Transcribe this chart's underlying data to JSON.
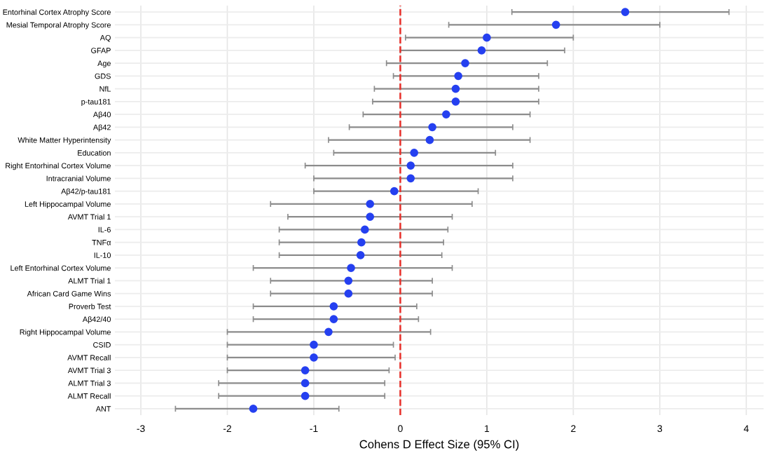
{
  "chart_data": {
    "type": "scatter",
    "orientation": "horizontal",
    "xlabel": "Cohens D Effect Size (95% CI)",
    "categories": [
      "Entorhinal Cortex Atrophy Score",
      "Mesial Temporal Atrophy Score",
      "AQ",
      "GFAP",
      "Age",
      "GDS",
      "NfL",
      "p-tau181",
      "Aβ40",
      "Aβ42",
      "White Matter Hyperintensity",
      "Education",
      "Right Entorhinal Cortex Volume",
      "Intracranial Volume",
      "Aβ42/p-tau181",
      "Left Hippocampal Volume",
      "AVMT Trial 1",
      "IL-6",
      "TNFα",
      "IL-10",
      "Left Entorhinal Cortex Volume",
      "ALMT Trial 1",
      "African Card Game Wins",
      "Proverb Test",
      "Aβ42/40",
      "Right Hippocampal Volume",
      "CSID",
      "AVMT Recall",
      "AVMT Trial 3",
      "ALMT Trial 3",
      "ALMT Recall",
      "ANT"
    ],
    "values": [
      2.6,
      1.8,
      1.0,
      0.94,
      0.75,
      0.67,
      0.64,
      0.64,
      0.53,
      0.37,
      0.34,
      0.16,
      0.12,
      0.12,
      -0.07,
      -0.35,
      -0.35,
      -0.41,
      -0.45,
      -0.46,
      -0.57,
      -0.6,
      -0.6,
      -0.77,
      -0.77,
      -0.83,
      -1.0,
      -1.0,
      -1.1,
      -1.1,
      -1.1,
      -1.7
    ],
    "errors": [
      [
        1.29,
        3.8
      ],
      [
        0.56,
        3.0
      ],
      [
        0.06,
        2.0
      ],
      [
        0.0,
        1.9
      ],
      [
        -0.16,
        1.7
      ],
      [
        -0.08,
        1.6
      ],
      [
        -0.3,
        1.6
      ],
      [
        -0.32,
        1.6
      ],
      [
        -0.43,
        1.5
      ],
      [
        -0.59,
        1.3
      ],
      [
        -0.83,
        1.5
      ],
      [
        -0.77,
        1.1
      ],
      [
        -1.1,
        1.3
      ],
      [
        -1.0,
        1.3
      ],
      [
        -1.0,
        0.9
      ],
      [
        -1.5,
        0.83
      ],
      [
        -1.3,
        0.6
      ],
      [
        -1.4,
        0.55
      ],
      [
        -1.4,
        0.5
      ],
      [
        -1.4,
        0.48
      ],
      [
        -1.7,
        0.6
      ],
      [
        -1.5,
        0.37
      ],
      [
        -1.5,
        0.37
      ],
      [
        -1.7,
        0.19
      ],
      [
        -1.7,
        0.21
      ],
      [
        -2.0,
        0.35
      ],
      [
        -2.0,
        -0.08
      ],
      [
        -2.0,
        -0.06
      ],
      [
        -2.0,
        -0.13
      ],
      [
        -2.1,
        -0.18
      ],
      [
        -2.1,
        -0.18
      ],
      [
        -2.6,
        -0.71
      ]
    ],
    "color": "#2540f0",
    "marker": "circle",
    "xlim": [
      -3.3,
      4.2
    ],
    "xticks": [
      -3,
      -2,
      -1,
      0,
      1,
      2,
      3,
      4
    ],
    "ref_lines": [
      {
        "axis": "x",
        "value": 0,
        "color": "#e8302a",
        "line_style": "dashed"
      }
    ],
    "grid": true
  }
}
